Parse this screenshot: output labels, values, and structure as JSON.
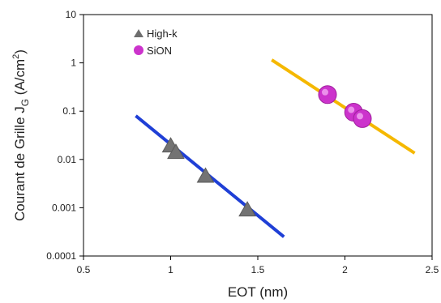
{
  "chart_data": {
    "type": "scatter",
    "xlabel": "EOT (nm)",
    "ylabel": {
      "main": "Courant de Grille J",
      "sub": "G",
      "unit_open": " (A/cm",
      "sup": "2",
      "unit_close": ")"
    },
    "xlim": [
      0.5,
      2.5
    ],
    "ylim": [
      0.0001,
      10
    ],
    "yscale": "log",
    "x_ticks": [
      {
        "value": 0.5,
        "label": "0.5"
      },
      {
        "value": 1,
        "label": "1"
      },
      {
        "value": 1.5,
        "label": "1.5"
      },
      {
        "value": 2,
        "label": "2"
      },
      {
        "value": 2.5,
        "label": "2.5"
      }
    ],
    "y_ticks": [
      {
        "value": 0.0001,
        "label": "0.0001"
      },
      {
        "value": 0.001,
        "label": "0.001"
      },
      {
        "value": 0.01,
        "label": "0.01"
      },
      {
        "value": 0.1,
        "label": "0.1"
      },
      {
        "value": 1,
        "label": "1"
      },
      {
        "value": 10,
        "label": "10"
      }
    ],
    "grid": false,
    "legend_position": "top-left",
    "series": [
      {
        "name": "High-k",
        "marker": "triangle",
        "color": "#808080",
        "x": [
          1.0,
          1.03,
          1.2,
          1.44
        ],
        "y": [
          0.019,
          0.014,
          0.0045,
          0.0009
        ]
      },
      {
        "name": "SiON",
        "marker": "circle",
        "color": "#cc33cc",
        "x": [
          1.9,
          2.05,
          2.1
        ],
        "y": [
          0.22,
          0.095,
          0.07
        ]
      }
    ],
    "fit_lines": [
      {
        "series": "High-k",
        "color": "#1f3fd6",
        "x": [
          0.8,
          1.65
        ],
        "y": [
          0.08,
          0.00025
        ]
      },
      {
        "series": "SiON",
        "color": "#f5b800",
        "x": [
          1.58,
          2.4
        ],
        "y": [
          1.15,
          0.0135
        ]
      }
    ]
  }
}
